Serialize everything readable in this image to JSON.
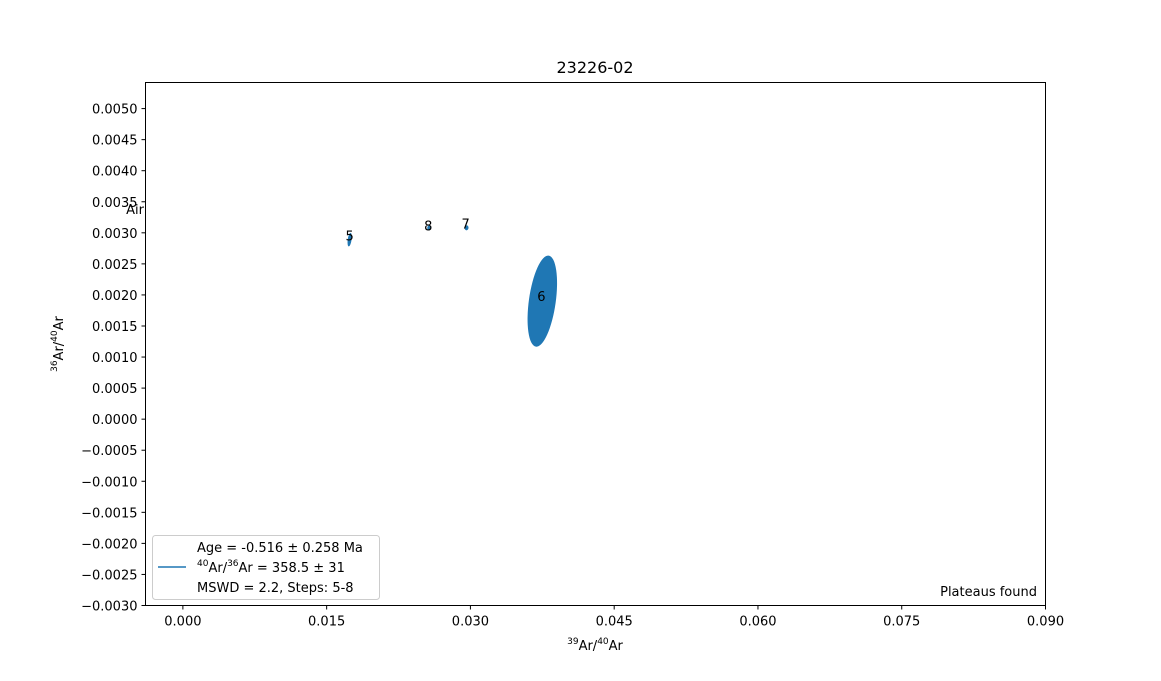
{
  "chart_data": {
    "type": "scatter",
    "title": "23226-02",
    "xlabel": {
      "pre": "",
      "sup1": "39",
      "mid": "Ar/",
      "sup2": "40",
      "post": "Ar"
    },
    "ylabel": {
      "pre": "",
      "sup1": "36",
      "mid": "Ar/",
      "sup2": "40",
      "post": "Ar"
    },
    "xlim": [
      -0.0039,
      0.09
    ],
    "ylim": [
      -0.003,
      0.00542
    ],
    "xticks": [
      0.0,
      0.015,
      0.03,
      0.045,
      0.06,
      0.075,
      0.09
    ],
    "xtick_labels": [
      "0.000",
      "0.015",
      "0.030",
      "0.045",
      "0.060",
      "0.075",
      "0.090"
    ],
    "yticks": [
      -0.003,
      -0.0025,
      -0.002,
      -0.0015,
      -0.001,
      -0.0005,
      0.0,
      0.0005,
      0.001,
      0.0015,
      0.002,
      0.0025,
      0.003,
      0.0035,
      0.004,
      0.0045,
      0.005
    ],
    "ytick_labels": [
      "−0.0030",
      "−0.0025",
      "−0.0020",
      "−0.0015",
      "−0.0010",
      "−0.0005",
      "0.0000",
      "0.0005",
      "0.0010",
      "0.0015",
      "0.0020",
      "0.0025",
      "0.0030",
      "0.0035",
      "0.0040",
      "0.0045",
      "0.0050"
    ],
    "air_label": "Air",
    "air_value": 0.003384,
    "color": "#1f77b4",
    "points": [
      {
        "label": "5",
        "x": 0.0174,
        "y": 0.00289,
        "rx": 0.0002,
        "ry": 0.00011,
        "tilt": 8
      },
      {
        "label": "6",
        "x": 0.0375,
        "y": 0.0019,
        "rx": 0.0014,
        "ry": 0.00074,
        "tilt": 8
      },
      {
        "label": "7",
        "x": 0.0296,
        "y": 0.00308,
        "rx": 0.0002,
        "ry": 4e-05,
        "tilt": 8
      },
      {
        "label": "8",
        "x": 0.0257,
        "y": 0.00308,
        "rx": 0.0002,
        "ry": 4e-05,
        "tilt": 8
      }
    ],
    "point_labels": [
      {
        "text": "5",
        "x": 0.0174,
        "y": 0.00296
      },
      {
        "text": "6",
        "x": 0.0374,
        "y": 0.00198
      },
      {
        "text": "7",
        "x": 0.0295,
        "y": 0.00315
      },
      {
        "text": "8",
        "x": 0.0256,
        "y": 0.00312
      }
    ],
    "legend": {
      "placement": "lower-left",
      "line1": "Age = -0.516 ± 0.258 Ma",
      "line2_sup1": "40",
      "line2_mid": "Ar/",
      "line2_sup2": "36",
      "line2_post": "Ar = 358.5 ± 31",
      "line3": "MSWD = 2.2, Steps: 5-8"
    },
    "annotation": "Plateaus found"
  }
}
